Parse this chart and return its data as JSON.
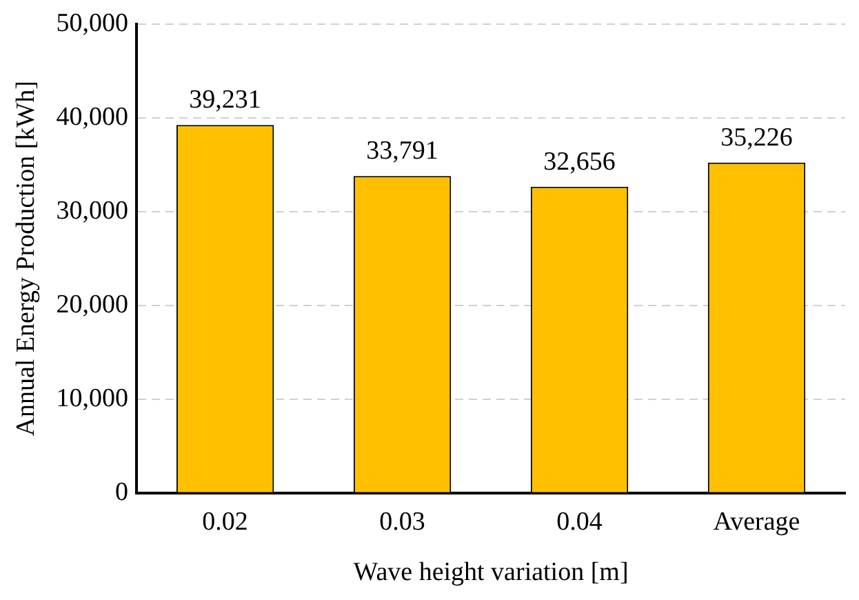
{
  "chart_data": {
    "type": "bar",
    "xlabel": "Wave height variation [m]",
    "ylabel": "Annual Energy Production [kWh]",
    "categories": [
      "0.02",
      "0.03",
      "0.04",
      "Average"
    ],
    "values": [
      39231,
      33791,
      32656,
      35226
    ],
    "value_labels": [
      "39,231",
      "33,791",
      "32,656",
      "35,226"
    ],
    "color": "#ffc000",
    "ylim": [
      0,
      50000
    ],
    "yticks": [
      {
        "value": 0,
        "label": "0"
      },
      {
        "value": 10000,
        "label": "10,000"
      },
      {
        "value": 20000,
        "label": "20,000"
      },
      {
        "value": 30000,
        "label": "30,000"
      },
      {
        "value": 40000,
        "label": "40,000"
      },
      {
        "value": 50000,
        "label": "50,000"
      }
    ],
    "grid": "y",
    "legend": false
  }
}
